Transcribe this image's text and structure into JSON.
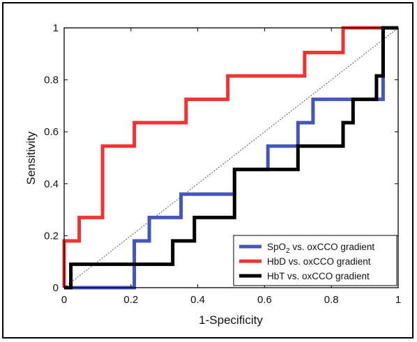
{
  "chart_data": {
    "type": "line",
    "title": "",
    "xlabel": "1-Specificity",
    "ylabel": "Sensitivity",
    "xlim": [
      0,
      1
    ],
    "ylim": [
      0,
      1
    ],
    "x_ticks": [
      "0",
      "0.2",
      "0.4",
      "0.6",
      "0.8",
      "1"
    ],
    "y_ticks": [
      "0",
      "0.2",
      "0.4",
      "0.6",
      "0.8",
      "1"
    ],
    "grid": false,
    "legend_position": "bottom-right",
    "diagonal_reference": {
      "x": [
        0,
        1
      ],
      "y": [
        0,
        1
      ],
      "style": "dotted"
    },
    "series": [
      {
        "name_main": "SpO",
        "name_sub": "2",
        "name_rest": " vs. oxCCO gradient",
        "color": "#4455bb",
        "x": [
          0,
          0.02,
          0.02,
          0.21,
          0.21,
          0.23,
          0.23,
          0.255,
          0.255,
          0.35,
          0.35,
          0.51,
          0.51,
          0.61,
          0.61,
          0.7,
          0.7,
          0.745,
          0.745,
          0.84,
          0.84,
          0.955,
          0.955,
          1.0
        ],
        "y": [
          0,
          0,
          0,
          0,
          0.18,
          0.18,
          0.18,
          0.18,
          0.27,
          0.27,
          0.36,
          0.36,
          0.455,
          0.455,
          0.545,
          0.545,
          0.635,
          0.635,
          0.725,
          0.725,
          0.725,
          0.725,
          1.0,
          1.0
        ]
      },
      {
        "name": "HbD vs. oxCCO gradient",
        "color": "#ee3333",
        "x": [
          0,
          0,
          0.045,
          0.045,
          0.115,
          0.115,
          0.21,
          0.21,
          0.365,
          0.365,
          0.49,
          0.49,
          0.72,
          0.72,
          0.835,
          0.835,
          0.955,
          1.0
        ],
        "y": [
          0,
          0.18,
          0.18,
          0.27,
          0.27,
          0.545,
          0.545,
          0.635,
          0.635,
          0.725,
          0.725,
          0.815,
          0.815,
          0.905,
          0.905,
          1.0,
          1.0,
          1.0
        ]
      },
      {
        "name": "HbT vs. oxCCO gradient",
        "color": "#000000",
        "x": [
          0,
          0.02,
          0.02,
          0.325,
          0.325,
          0.39,
          0.39,
          0.51,
          0.51,
          0.7,
          0.7,
          0.835,
          0.835,
          0.865,
          0.865,
          0.935,
          0.935,
          0.955,
          0.955,
          1.0
        ],
        "y": [
          0,
          0,
          0.09,
          0.09,
          0.18,
          0.18,
          0.27,
          0.27,
          0.455,
          0.455,
          0.545,
          0.545,
          0.635,
          0.635,
          0.725,
          0.725,
          0.815,
          0.815,
          1.0,
          1.0
        ]
      }
    ]
  }
}
